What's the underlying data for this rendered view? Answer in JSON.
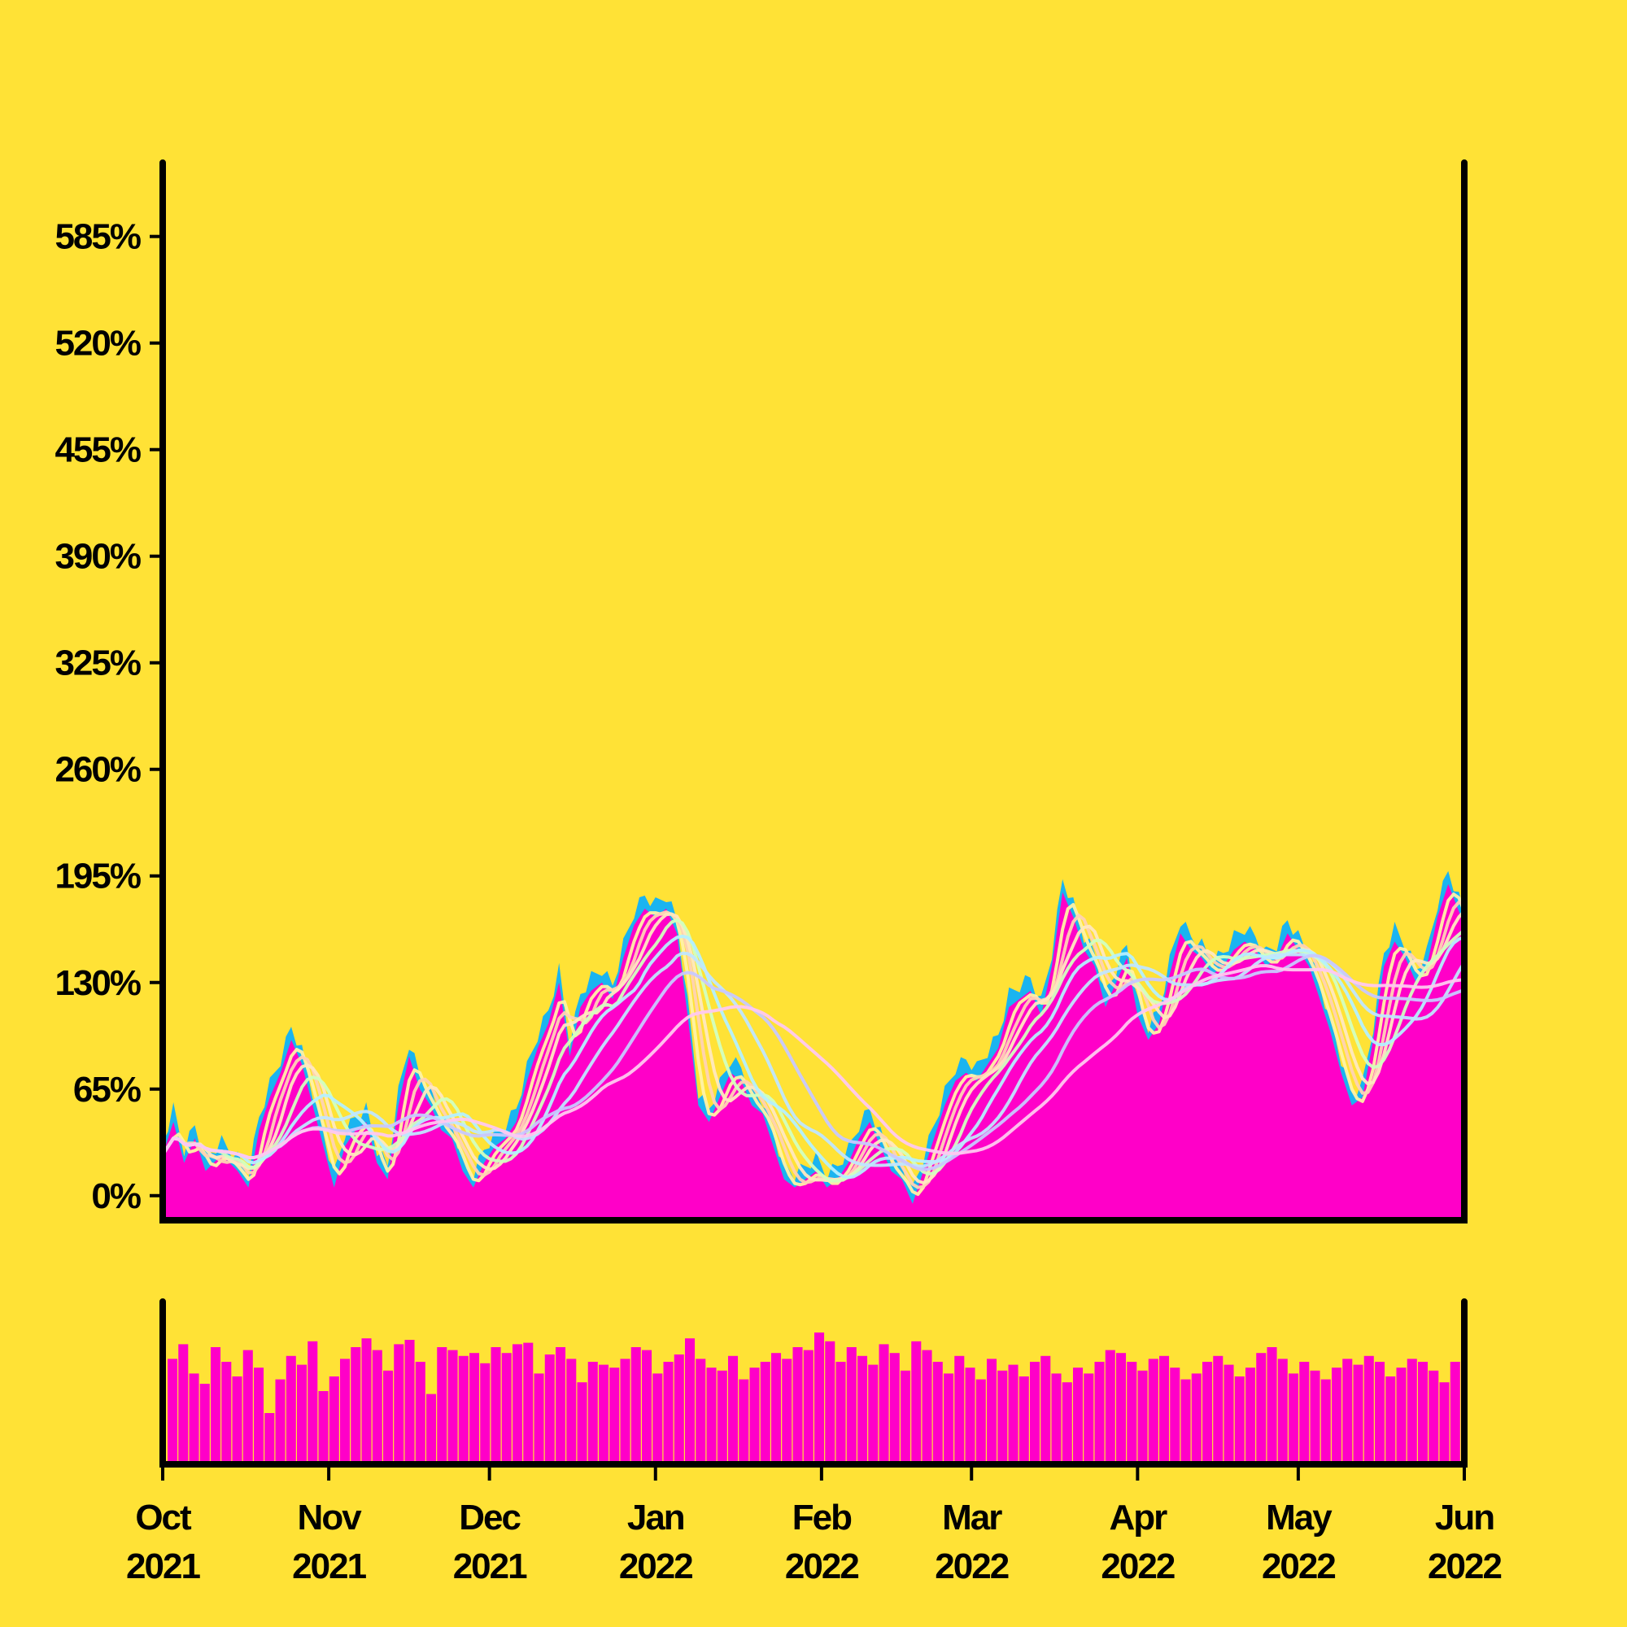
{
  "colors": {
    "background": "#FFE236",
    "axis": "#000000",
    "price_area": "#FF00C8",
    "price_high": "#1AB4F0",
    "volume": "#FF00C8",
    "ma_colors": [
      "#FFF2A6",
      "#FFD2B4",
      "#FFE8C0",
      "#D2FFC0",
      "#B4F0FF",
      "#C0E6FF",
      "#C8C8FF",
      "#FFC8F0"
    ]
  },
  "chart_data": [
    {
      "type": "area",
      "title": "",
      "xlabel": "",
      "ylabel": "",
      "x_range": [
        "2021-10-01",
        "2022-06-01"
      ],
      "ylim": [
        -15,
        630
      ],
      "y_ticks": [
        0,
        65,
        130,
        195,
        260,
        325,
        390,
        455,
        520,
        585
      ],
      "y_tick_labels": [
        "0%",
        "65%",
        "130%",
        "195%",
        "260%",
        "325%",
        "390%",
        "455%",
        "520%",
        "585%"
      ],
      "x_ticks": [
        "2021-10-01",
        "2021-11-01",
        "2021-12-01",
        "2022-01-01",
        "2022-02-01",
        "2022-03-01",
        "2022-04-01",
        "2022-05-01",
        "2022-06-01"
      ],
      "x_tick_labels": [
        [
          "Oct",
          "2021"
        ],
        [
          "Nov",
          "2021"
        ],
        [
          "Dec",
          "2021"
        ],
        [
          "Jan",
          "2022"
        ],
        [
          "Feb",
          "2022"
        ],
        [
          "Mar",
          "2022"
        ],
        [
          "Apr",
          "2022"
        ],
        [
          "May",
          "2022"
        ],
        [
          "Jun",
          "2022"
        ]
      ],
      "grid": false,
      "series": [
        {
          "kind": "return_pct",
          "points": [
            [
              "2021-10-01",
              25
            ],
            [
              "2021-10-03",
              45
            ],
            [
              "2021-10-05",
              20
            ],
            [
              "2021-10-07",
              35
            ],
            [
              "2021-10-09",
              15
            ],
            [
              "2021-10-12",
              25
            ],
            [
              "2021-10-15",
              15
            ],
            [
              "2021-10-17",
              5
            ],
            [
              "2021-10-19",
              40
            ],
            [
              "2021-10-21",
              60
            ],
            [
              "2021-10-23",
              75
            ],
            [
              "2021-10-25",
              95
            ],
            [
              "2021-10-27",
              80
            ],
            [
              "2021-10-29",
              55
            ],
            [
              "2021-10-31",
              30
            ],
            [
              "2021-11-02",
              5
            ],
            [
              "2021-11-04",
              30
            ],
            [
              "2021-11-06",
              40
            ],
            [
              "2021-11-08",
              45
            ],
            [
              "2021-11-10",
              20
            ],
            [
              "2021-11-12",
              10
            ],
            [
              "2021-11-14",
              55
            ],
            [
              "2021-11-16",
              85
            ],
            [
              "2021-11-18",
              65
            ],
            [
              "2021-11-20",
              55
            ],
            [
              "2021-11-22",
              40
            ],
            [
              "2021-11-24",
              35
            ],
            [
              "2021-11-26",
              15
            ],
            [
              "2021-11-28",
              5
            ],
            [
              "2021-11-30",
              20
            ],
            [
              "2021-12-02",
              30
            ],
            [
              "2021-12-04",
              35
            ],
            [
              "2021-12-06",
              45
            ],
            [
              "2021-12-08",
              70
            ],
            [
              "2021-12-10",
              90
            ],
            [
              "2021-12-12",
              105
            ],
            [
              "2021-12-14",
              130
            ],
            [
              "2021-12-16",
              85
            ],
            [
              "2021-12-18",
              115
            ],
            [
              "2021-12-20",
              125
            ],
            [
              "2021-12-22",
              130
            ],
            [
              "2021-12-24",
              120
            ],
            [
              "2021-12-26",
              145
            ],
            [
              "2021-12-28",
              165
            ],
            [
              "2021-12-30",
              175
            ],
            [
              "2022-01-01",
              170
            ],
            [
              "2022-01-03",
              175
            ],
            [
              "2022-01-05",
              160
            ],
            [
              "2022-01-07",
              110
            ],
            [
              "2022-01-09",
              55
            ],
            [
              "2022-01-11",
              45
            ],
            [
              "2022-01-13",
              60
            ],
            [
              "2022-01-15",
              75
            ],
            [
              "2022-01-17",
              70
            ],
            [
              "2022-01-19",
              55
            ],
            [
              "2022-01-21",
              50
            ],
            [
              "2022-01-23",
              30
            ],
            [
              "2022-01-25",
              10
            ],
            [
              "2022-01-27",
              5
            ],
            [
              "2022-01-29",
              10
            ],
            [
              "2022-01-31",
              15
            ],
            [
              "2022-02-02",
              5
            ],
            [
              "2022-02-04",
              10
            ],
            [
              "2022-02-06",
              20
            ],
            [
              "2022-02-08",
              35
            ],
            [
              "2022-02-10",
              45
            ],
            [
              "2022-02-12",
              30
            ],
            [
              "2022-02-14",
              15
            ],
            [
              "2022-02-16",
              10
            ],
            [
              "2022-02-18",
              -5
            ],
            [
              "2022-02-20",
              15
            ],
            [
              "2022-02-22",
              35
            ],
            [
              "2022-02-24",
              55
            ],
            [
              "2022-02-26",
              70
            ],
            [
              "2022-02-28",
              75
            ],
            [
              "2022-03-02",
              70
            ],
            [
              "2022-03-04",
              80
            ],
            [
              "2022-03-06",
              90
            ],
            [
              "2022-03-08",
              115
            ],
            [
              "2022-03-10",
              120
            ],
            [
              "2022-03-12",
              125
            ],
            [
              "2022-03-14",
              110
            ],
            [
              "2022-03-16",
              140
            ],
            [
              "2022-03-18",
              185
            ],
            [
              "2022-03-20",
              170
            ],
            [
              "2022-03-22",
              150
            ],
            [
              "2022-03-24",
              140
            ],
            [
              "2022-03-26",
              115
            ],
            [
              "2022-03-28",
              130
            ],
            [
              "2022-03-30",
              145
            ],
            [
              "2022-04-01",
              110
            ],
            [
              "2022-04-03",
              95
            ],
            [
              "2022-04-05",
              105
            ],
            [
              "2022-04-07",
              135
            ],
            [
              "2022-04-09",
              160
            ],
            [
              "2022-04-11",
              150
            ],
            [
              "2022-04-13",
              145
            ],
            [
              "2022-04-15",
              135
            ],
            [
              "2022-04-17",
              140
            ],
            [
              "2022-04-19",
              150
            ],
            [
              "2022-04-21",
              155
            ],
            [
              "2022-04-23",
              150
            ],
            [
              "2022-04-25",
              140
            ],
            [
              "2022-04-27",
              145
            ],
            [
              "2022-04-29",
              160
            ],
            [
              "2022-05-01",
              150
            ],
            [
              "2022-05-03",
              140
            ],
            [
              "2022-05-05",
              120
            ],
            [
              "2022-05-07",
              100
            ],
            [
              "2022-05-09",
              75
            ],
            [
              "2022-05-11",
              55
            ],
            [
              "2022-05-13",
              60
            ],
            [
              "2022-05-15",
              95
            ],
            [
              "2022-05-17",
              140
            ],
            [
              "2022-05-19",
              155
            ],
            [
              "2022-05-21",
              145
            ],
            [
              "2022-05-23",
              130
            ],
            [
              "2022-05-25",
              140
            ],
            [
              "2022-05-27",
              170
            ],
            [
              "2022-05-29",
              190
            ],
            [
              "2022-06-01",
              165
            ]
          ]
        },
        {
          "kind": "moving_average",
          "window": 3
        },
        {
          "kind": "moving_average",
          "window": 5
        },
        {
          "kind": "moving_average",
          "window": 7
        },
        {
          "kind": "moving_average",
          "window": 10
        },
        {
          "kind": "moving_average",
          "window": 14
        },
        {
          "kind": "moving_average",
          "window": 20
        },
        {
          "kind": "moving_average",
          "window": 28
        },
        {
          "kind": "moving_average",
          "window": 40
        }
      ]
    },
    {
      "type": "bar",
      "title": "",
      "xlabel": "",
      "ylabel": "",
      "x_range": [
        "2021-10-01",
        "2022-06-01"
      ],
      "y_axis_labels": false,
      "series": [
        {
          "kind": "volume",
          "values": [
            0.72,
            0.82,
            0.62,
            0.55,
            0.8,
            0.7,
            0.6,
            0.78,
            0.66,
            0.35,
            0.58,
            0.74,
            0.68,
            0.84,
            0.5,
            0.6,
            0.72,
            0.8,
            0.86,
            0.78,
            0.64,
            0.82,
            0.85,
            0.7,
            0.48,
            0.8,
            0.78,
            0.74,
            0.76,
            0.69,
            0.8,
            0.76,
            0.82,
            0.83,
            0.62,
            0.75,
            0.8,
            0.72,
            0.56,
            0.7,
            0.68,
            0.66,
            0.72,
            0.8,
            0.78,
            0.62,
            0.7,
            0.75,
            0.86,
            0.72,
            0.66,
            0.64,
            0.74,
            0.58,
            0.66,
            0.7,
            0.76,
            0.72,
            0.8,
            0.78,
            0.9,
            0.84,
            0.7,
            0.8,
            0.74,
            0.68,
            0.82,
            0.76,
            0.64,
            0.84,
            0.78,
            0.7,
            0.62,
            0.74,
            0.66,
            0.58,
            0.72,
            0.64,
            0.68,
            0.6,
            0.7,
            0.74,
            0.62,
            0.56,
            0.66,
            0.62,
            0.7,
            0.78,
            0.76,
            0.7,
            0.64,
            0.72,
            0.74,
            0.66,
            0.58,
            0.62,
            0.7,
            0.74,
            0.68,
            0.6,
            0.66,
            0.76,
            0.8,
            0.72,
            0.62,
            0.7,
            0.64,
            0.58,
            0.66,
            0.72,
            0.68,
            0.74,
            0.7,
            0.6,
            0.66,
            0.72,
            0.7,
            0.64,
            0.56,
            0.7
          ]
        }
      ]
    }
  ]
}
